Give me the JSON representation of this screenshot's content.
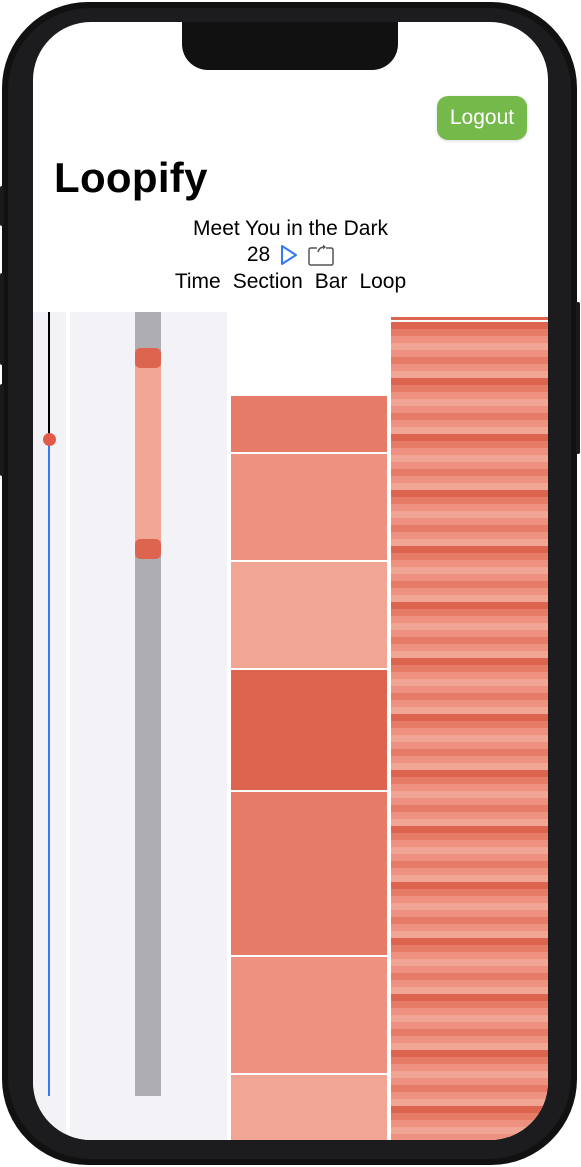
{
  "app": {
    "title": "Loopify",
    "logout_label": "Logout"
  },
  "song": {
    "name": "Meet You in the Dark",
    "bar_number": "28"
  },
  "controls": {
    "play_icon": "play-icon",
    "loop_icon": "loop-icon"
  },
  "columns": [
    "Time",
    "Section",
    "Bar",
    "Loop"
  ],
  "colors": {
    "logout_green": "#75b94b",
    "accent_blue": "#3478f6",
    "playhead_red": "#e25b48",
    "panel_gray": "#f2f2f7",
    "track_gray": "#adadb2",
    "shade_dark": "#dd6550",
    "shade_mid": "#e67c68",
    "shade_light": "#ee9180",
    "shade_pale": "#f1a695"
  },
  "time": {
    "playhead_fraction": 0.155
  },
  "section": {
    "selected_start_fraction": 0.055,
    "selected_end_fraction": 0.3
  },
  "bars": [
    {
      "shade": "mid"
    },
    {
      "shade": "light"
    },
    {
      "shade": "pale"
    },
    {
      "shade": "dark"
    },
    {
      "shade": "mid"
    },
    {
      "shade": "light"
    },
    {
      "shade": "pale"
    }
  ],
  "loop": {
    "stripe_pattern": [
      "dark",
      "mid",
      "light",
      "pale",
      "light",
      "mid",
      "light",
      "pale"
    ]
  }
}
